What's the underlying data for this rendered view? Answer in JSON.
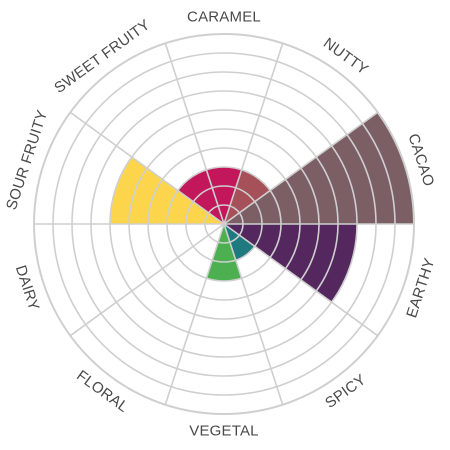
{
  "chart_data": {
    "type": "polar_area",
    "categories": [
      "CARAMEL",
      "NUTTY",
      "CACAO",
      "EARTHY",
      "SPICY",
      "VEGETAL",
      "FLORAL",
      "DAIRY",
      "SOUR FRUITY",
      "SWEET FRUITY"
    ],
    "values": [
      3,
      3,
      10,
      7,
      2,
      3,
      0,
      0,
      6,
      3
    ],
    "colors": [
      "#c2185b",
      "#a6505a",
      "#7b5f64",
      "#55275f",
      "#1f7a80",
      "#4caf50",
      "#cccccc",
      "#cccccc",
      "#fdd54c",
      "#c2185b"
    ],
    "rlim": [
      0,
      10
    ],
    "rings": 10,
    "grid": true,
    "title": ""
  }
}
